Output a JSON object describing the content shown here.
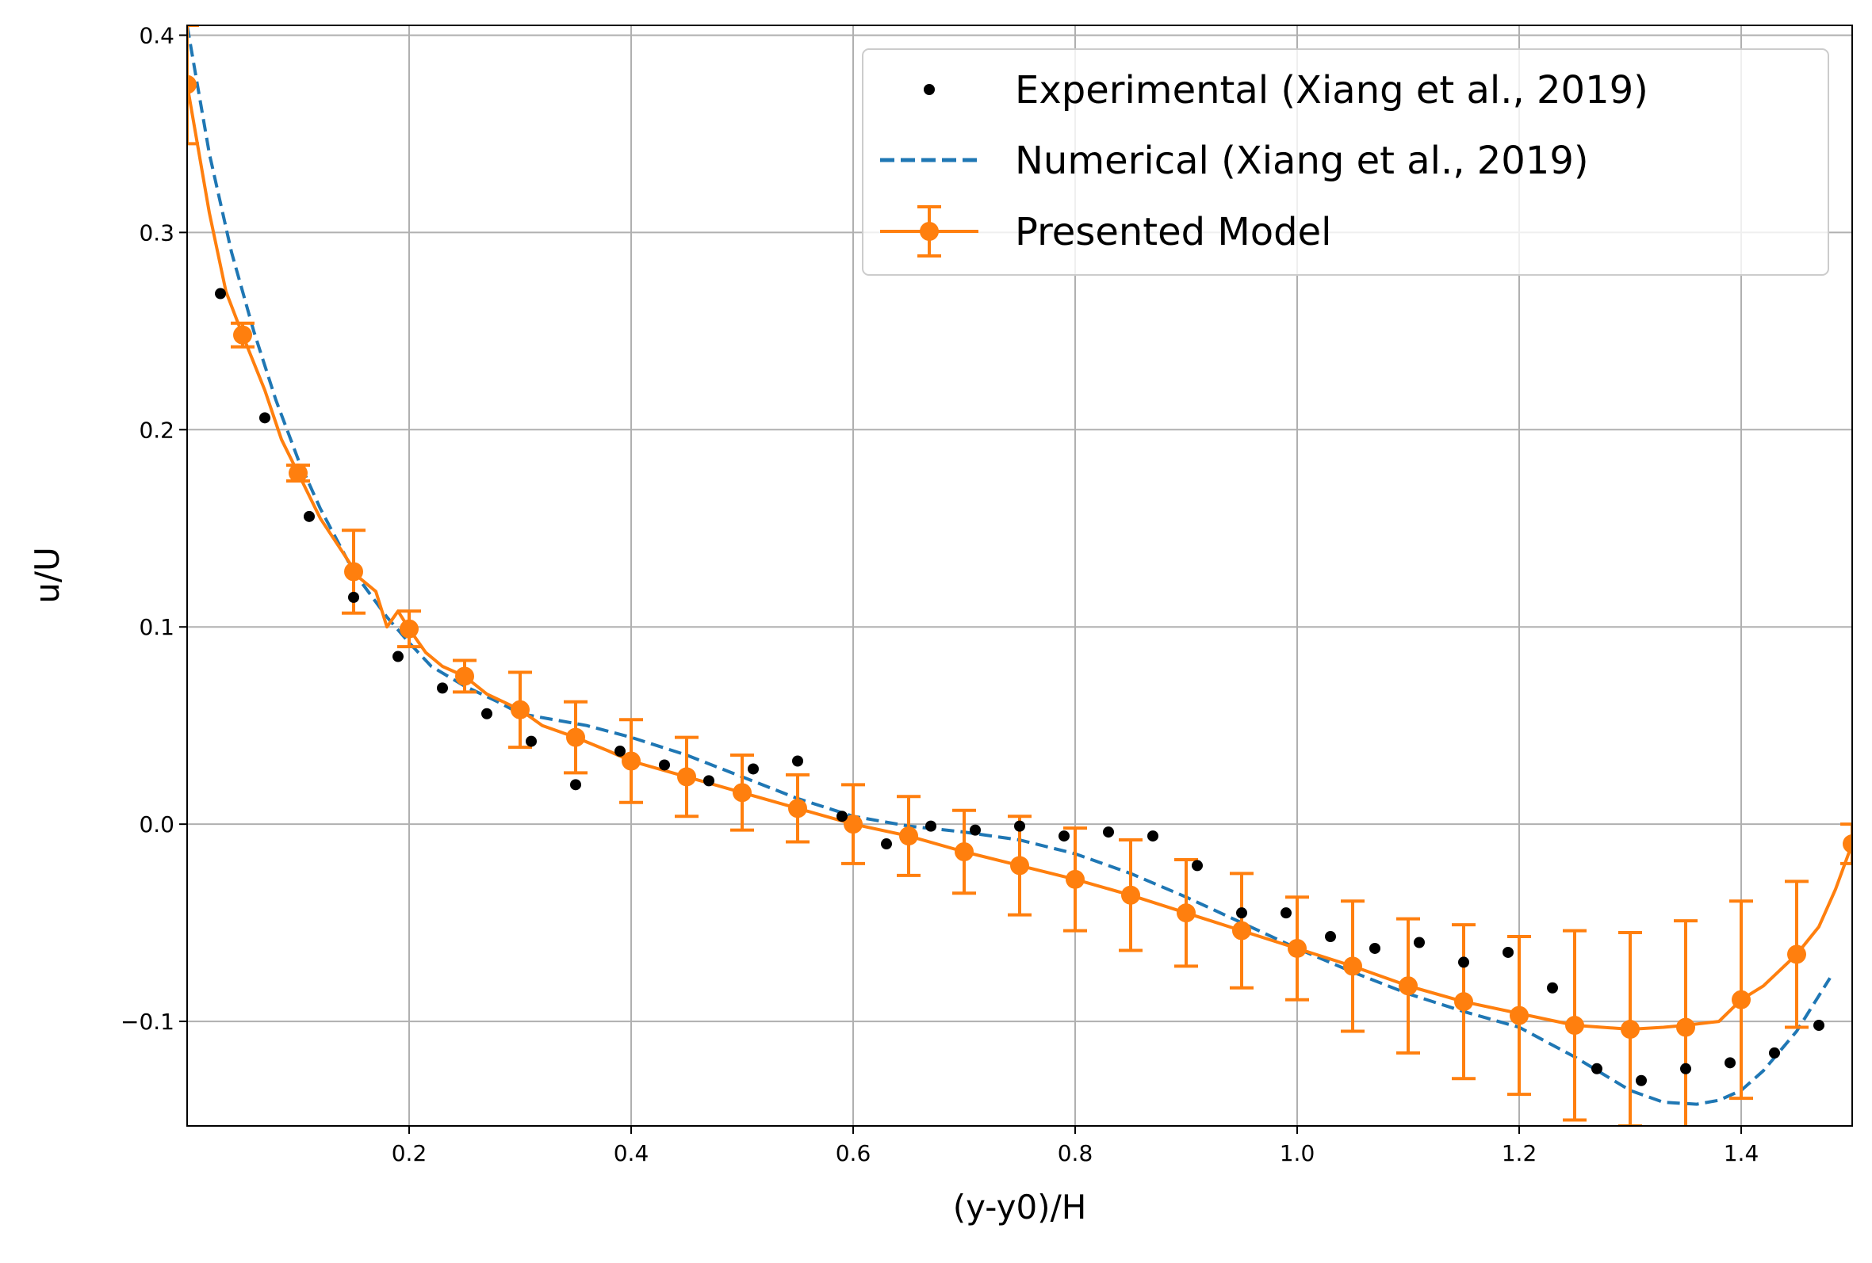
{
  "chart_data": {
    "type": "line",
    "title": "",
    "xlabel": "(y-y0)/H",
    "ylabel": "u/U",
    "xlim": [
      0.0,
      1.5
    ],
    "ylim": [
      -0.153,
      0.405
    ],
    "grid": true,
    "legend_position": "top-right",
    "x_ticks": [
      {
        "value": 0.2,
        "label": "0.2"
      },
      {
        "value": 0.4,
        "label": "0.4"
      },
      {
        "value": 0.6,
        "label": "0.6"
      },
      {
        "value": 0.8,
        "label": "0.8"
      },
      {
        "value": 1.0,
        "label": "1.0"
      },
      {
        "value": 1.2,
        "label": "1.2"
      },
      {
        "value": 1.4,
        "label": "1.4"
      }
    ],
    "y_ticks": [
      {
        "value": -0.1,
        "label": "−0.1"
      },
      {
        "value": 0.0,
        "label": "0.0"
      },
      {
        "value": 0.1,
        "label": "0.1"
      },
      {
        "value": 0.2,
        "label": "0.2"
      },
      {
        "value": 0.3,
        "label": "0.3"
      },
      {
        "value": 0.4,
        "label": "0.4"
      }
    ],
    "series": [
      {
        "name": "Experimental (Xiang et al., 2019)",
        "style": "markers",
        "color": "#000000",
        "x": [
          0.03,
          0.07,
          0.11,
          0.15,
          0.19,
          0.23,
          0.27,
          0.31,
          0.35,
          0.39,
          0.43,
          0.47,
          0.51,
          0.55,
          0.59,
          0.63,
          0.67,
          0.71,
          0.75,
          0.79,
          0.83,
          0.87,
          0.91,
          0.95,
          0.99,
          1.03,
          1.07,
          1.11,
          1.15,
          1.19,
          1.23,
          1.27,
          1.31,
          1.35,
          1.39,
          1.43,
          1.47
        ],
        "y": [
          0.269,
          0.206,
          0.156,
          0.115,
          0.085,
          0.069,
          0.056,
          0.042,
          0.02,
          0.037,
          0.03,
          0.022,
          0.028,
          0.032,
          0.004,
          -0.01,
          -0.001,
          -0.003,
          -0.001,
          -0.006,
          -0.004,
          -0.006,
          -0.021,
          -0.045,
          -0.045,
          -0.057,
          -0.063,
          -0.06,
          -0.07,
          -0.065,
          -0.083,
          -0.124,
          -0.13,
          -0.124,
          -0.121,
          -0.116,
          -0.102
        ]
      },
      {
        "name": "Numerical (Xiang et al., 2019)",
        "style": "dashed",
        "color": "#1f77b4",
        "x": [
          0.0,
          0.02,
          0.04,
          0.06,
          0.08,
          0.1,
          0.12,
          0.15,
          0.18,
          0.2,
          0.22,
          0.25,
          0.28,
          0.3,
          0.33,
          0.36,
          0.4,
          0.45,
          0.5,
          0.55,
          0.6,
          0.65,
          0.7,
          0.75,
          0.8,
          0.85,
          0.9,
          0.95,
          1.0,
          1.05,
          1.1,
          1.15,
          1.2,
          1.25,
          1.3,
          1.33,
          1.36,
          1.38,
          1.4,
          1.42,
          1.45,
          1.48
        ],
        "y": [
          0.405,
          0.34,
          0.29,
          0.25,
          0.215,
          0.185,
          0.16,
          0.128,
          0.105,
          0.092,
          0.08,
          0.07,
          0.062,
          0.056,
          0.053,
          0.05,
          0.044,
          0.035,
          0.024,
          0.013,
          0.004,
          -0.001,
          -0.004,
          -0.008,
          -0.015,
          -0.025,
          -0.037,
          -0.05,
          -0.063,
          -0.075,
          -0.086,
          -0.095,
          -0.103,
          -0.118,
          -0.135,
          -0.141,
          -0.142,
          -0.14,
          -0.135,
          -0.125,
          -0.105,
          -0.078
        ]
      },
      {
        "name": "Presented Model",
        "style": "line-markers-errorbars",
        "color": "#ff7f0e",
        "line_x": [
          0.0,
          0.02,
          0.035,
          0.05,
          0.07,
          0.085,
          0.1,
          0.12,
          0.14,
          0.155,
          0.17,
          0.18,
          0.19,
          0.2,
          0.215,
          0.23,
          0.25,
          0.27,
          0.3,
          0.32,
          0.35,
          0.38,
          0.4,
          0.45,
          0.5,
          0.55,
          0.6,
          0.65,
          0.7,
          0.75,
          0.8,
          0.85,
          0.9,
          0.95,
          1.0,
          1.05,
          1.1,
          1.15,
          1.2,
          1.25,
          1.3,
          1.33,
          1.35,
          1.38,
          1.4,
          1.42,
          1.45,
          1.47,
          1.485,
          1.5
        ],
        "line_y": [
          0.375,
          0.31,
          0.27,
          0.248,
          0.22,
          0.195,
          0.178,
          0.155,
          0.138,
          0.125,
          0.118,
          0.1,
          0.108,
          0.099,
          0.087,
          0.08,
          0.075,
          0.066,
          0.058,
          0.05,
          0.044,
          0.037,
          0.032,
          0.024,
          0.016,
          0.008,
          0.0,
          -0.006,
          -0.014,
          -0.021,
          -0.028,
          -0.036,
          -0.045,
          -0.054,
          -0.063,
          -0.072,
          -0.082,
          -0.09,
          -0.096,
          -0.102,
          -0.104,
          -0.103,
          -0.102,
          -0.1,
          -0.089,
          -0.082,
          -0.066,
          -0.052,
          -0.033,
          -0.01
        ],
        "points": [
          {
            "x": 0.0,
            "y": 0.375,
            "err": 0.03
          },
          {
            "x": 0.05,
            "y": 0.248,
            "err": 0.006
          },
          {
            "x": 0.1,
            "y": 0.178,
            "err": 0.004
          },
          {
            "x": 0.15,
            "y": 0.128,
            "err": 0.021
          },
          {
            "x": 0.2,
            "y": 0.099,
            "err": 0.009
          },
          {
            "x": 0.25,
            "y": 0.075,
            "err": 0.008
          },
          {
            "x": 0.3,
            "y": 0.058,
            "err": 0.019
          },
          {
            "x": 0.35,
            "y": 0.044,
            "err": 0.018
          },
          {
            "x": 0.4,
            "y": 0.032,
            "err": 0.021
          },
          {
            "x": 0.45,
            "y": 0.024,
            "err": 0.02
          },
          {
            "x": 0.5,
            "y": 0.016,
            "err": 0.019
          },
          {
            "x": 0.55,
            "y": 0.008,
            "err": 0.017
          },
          {
            "x": 0.6,
            "y": 0.0,
            "err": 0.02
          },
          {
            "x": 0.65,
            "y": -0.006,
            "err": 0.02
          },
          {
            "x": 0.7,
            "y": -0.014,
            "err": 0.021
          },
          {
            "x": 0.75,
            "y": -0.021,
            "err": 0.025
          },
          {
            "x": 0.8,
            "y": -0.028,
            "err": 0.026
          },
          {
            "x": 0.85,
            "y": -0.036,
            "err": 0.028
          },
          {
            "x": 0.9,
            "y": -0.045,
            "err": 0.027
          },
          {
            "x": 0.95,
            "y": -0.054,
            "err": 0.029
          },
          {
            "x": 1.0,
            "y": -0.063,
            "err": 0.026
          },
          {
            "x": 1.05,
            "y": -0.072,
            "err": 0.033
          },
          {
            "x": 1.1,
            "y": -0.082,
            "err": 0.034
          },
          {
            "x": 1.15,
            "y": -0.09,
            "err": 0.039
          },
          {
            "x": 1.2,
            "y": -0.097,
            "err": 0.04
          },
          {
            "x": 1.25,
            "y": -0.102,
            "err": 0.048
          },
          {
            "x": 1.3,
            "y": -0.104,
            "err": 0.049
          },
          {
            "x": 1.35,
            "y": -0.103,
            "err": 0.054
          },
          {
            "x": 1.4,
            "y": -0.089,
            "err": 0.05
          },
          {
            "x": 1.45,
            "y": -0.066,
            "err": 0.037
          },
          {
            "x": 1.5,
            "y": -0.01,
            "err": 0.01
          }
        ]
      }
    ]
  }
}
